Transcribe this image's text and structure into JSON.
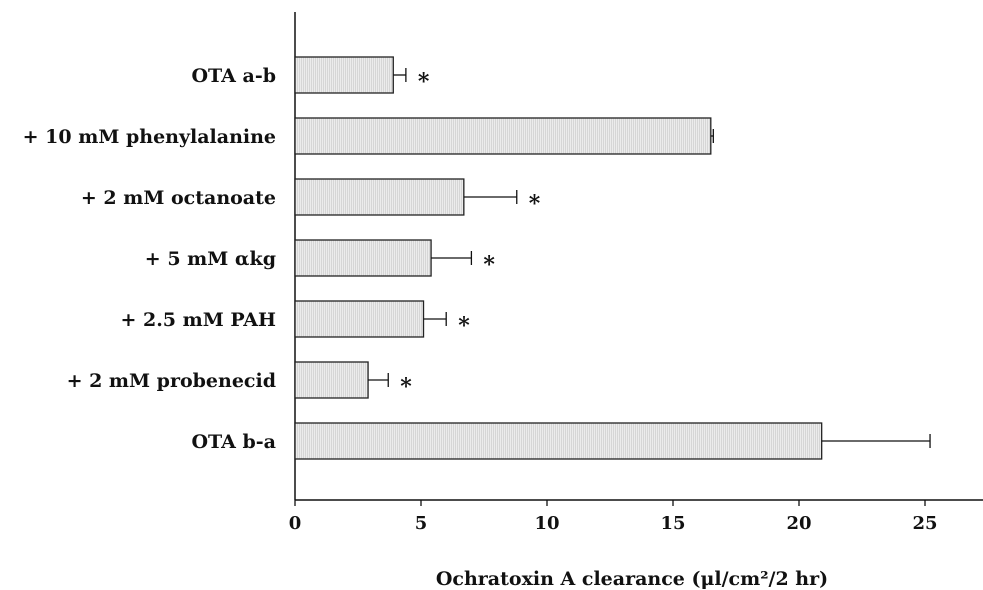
{
  "chart_data": {
    "type": "bar",
    "orientation": "horizontal",
    "categories": [
      "OTA a-b",
      "+ 10 mM phenylalanine",
      "+ 2 mM octanoate",
      "+ 5 mM αkg",
      "+ 2.5 mM PAH",
      "+ 2 mM probenecid",
      "OTA b-a"
    ],
    "values": [
      3.9,
      16.5,
      6.7,
      5.4,
      5.1,
      2.9,
      20.9
    ],
    "error_upper": [
      4.4,
      16.6,
      8.8,
      7.0,
      6.0,
      3.7,
      25.2
    ],
    "significance": [
      "*",
      "",
      "*",
      "*",
      "*",
      "*",
      ""
    ],
    "xlabel": "Ochratoxin A clearance (μl/cm²/2 hr)",
    "ylabel": "",
    "xlim": [
      0,
      27.5
    ],
    "xticks": [
      "0",
      "5",
      "10",
      "15",
      "20",
      "25"
    ],
    "grid": false,
    "bar_color": "#d8d8d8",
    "bar_edge_color": "#222222"
  }
}
